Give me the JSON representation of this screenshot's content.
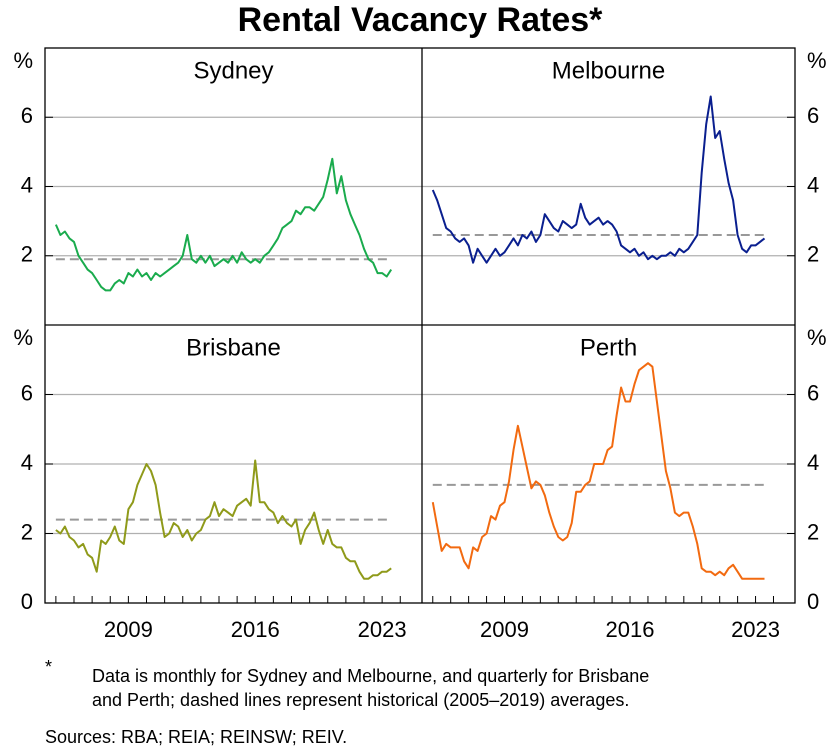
{
  "title": "Rental Vacancy Rates*",
  "chart_data": [
    {
      "type": "line",
      "title": "Sydney",
      "ylabel": "%",
      "color": "#1aab4d",
      "average": 1.9,
      "ylim": [
        0,
        8
      ],
      "yticks": [
        2,
        4,
        6
      ],
      "xlim": [
        2004.4,
        2025.2
      ],
      "grid": true,
      "x": [
        2005,
        2005.25,
        2005.5,
        2005.75,
        2006,
        2006.25,
        2006.5,
        2006.75,
        2007,
        2007.25,
        2007.5,
        2007.75,
        2008,
        2008.25,
        2008.5,
        2008.75,
        2009,
        2009.25,
        2009.5,
        2009.75,
        2010,
        2010.25,
        2010.5,
        2010.75,
        2011,
        2011.25,
        2011.5,
        2011.75,
        2012,
        2012.25,
        2012.5,
        2012.75,
        2013,
        2013.25,
        2013.5,
        2013.75,
        2014,
        2014.25,
        2014.5,
        2014.75,
        2015,
        2015.25,
        2015.5,
        2015.75,
        2016,
        2016.25,
        2016.5,
        2016.75,
        2017,
        2017.25,
        2017.5,
        2017.75,
        2018,
        2018.25,
        2018.5,
        2018.75,
        2019,
        2019.25,
        2019.5,
        2019.75,
        2020,
        2020.25,
        2020.5,
        2020.75,
        2021,
        2021.25,
        2021.5,
        2021.75,
        2022,
        2022.25,
        2022.5,
        2022.75,
        2023,
        2023.25,
        2023.5
      ],
      "values": [
        2.9,
        2.6,
        2.7,
        2.5,
        2.4,
        2.0,
        1.8,
        1.6,
        1.5,
        1.3,
        1.1,
        1.0,
        1.0,
        1.2,
        1.3,
        1.2,
        1.5,
        1.4,
        1.6,
        1.4,
        1.5,
        1.3,
        1.5,
        1.4,
        1.5,
        1.6,
        1.7,
        1.8,
        2.0,
        2.6,
        1.9,
        1.8,
        2.0,
        1.8,
        2.0,
        1.7,
        1.8,
        1.9,
        1.8,
        2.0,
        1.8,
        2.1,
        1.9,
        1.8,
        1.9,
        1.8,
        2.0,
        2.1,
        2.3,
        2.5,
        2.8,
        2.9,
        3.0,
        3.3,
        3.2,
        3.4,
        3.4,
        3.3,
        3.5,
        3.7,
        4.2,
        4.8,
        3.8,
        4.3,
        3.6,
        3.2,
        2.9,
        2.6,
        2.2,
        1.9,
        1.8,
        1.5,
        1.5,
        1.4,
        1.6
      ]
    },
    {
      "type": "line",
      "title": "Melbourne",
      "ylabel": "%",
      "color": "#0a1f8f",
      "average": 2.6,
      "ylim": [
        0,
        8
      ],
      "yticks": [
        2,
        4,
        6
      ],
      "xlim": [
        2004.4,
        2025.2
      ],
      "grid": true,
      "x": [
        2005,
        2005.25,
        2005.5,
        2005.75,
        2006,
        2006.25,
        2006.5,
        2006.75,
        2007,
        2007.25,
        2007.5,
        2007.75,
        2008,
        2008.25,
        2008.5,
        2008.75,
        2009,
        2009.25,
        2009.5,
        2009.75,
        2010,
        2010.25,
        2010.5,
        2010.75,
        2011,
        2011.25,
        2011.5,
        2011.75,
        2012,
        2012.25,
        2012.5,
        2012.75,
        2013,
        2013.25,
        2013.5,
        2013.75,
        2014,
        2014.25,
        2014.5,
        2014.75,
        2015,
        2015.25,
        2015.5,
        2015.75,
        2016,
        2016.25,
        2016.5,
        2016.75,
        2017,
        2017.25,
        2017.5,
        2017.75,
        2018,
        2018.25,
        2018.5,
        2018.75,
        2019,
        2019.25,
        2019.5,
        2019.75,
        2020,
        2020.25,
        2020.5,
        2020.75,
        2021,
        2021.25,
        2021.5,
        2021.75,
        2022,
        2022.25,
        2022.5,
        2022.75,
        2023,
        2023.25,
        2023.5
      ],
      "values": [
        3.9,
        3.6,
        3.2,
        2.8,
        2.7,
        2.5,
        2.4,
        2.5,
        2.3,
        1.8,
        2.2,
        2.0,
        1.8,
        2.0,
        2.2,
        2.0,
        2.1,
        2.3,
        2.5,
        2.3,
        2.6,
        2.5,
        2.7,
        2.4,
        2.6,
        3.2,
        3.0,
        2.8,
        2.7,
        3.0,
        2.9,
        2.8,
        2.9,
        3.5,
        3.1,
        2.9,
        3.0,
        3.1,
        2.9,
        3.0,
        2.9,
        2.7,
        2.3,
        2.2,
        2.1,
        2.2,
        2.0,
        2.1,
        1.9,
        2.0,
        1.9,
        2.0,
        2.0,
        2.1,
        2.0,
        2.2,
        2.1,
        2.2,
        2.4,
        2.6,
        4.4,
        5.8,
        6.6,
        5.4,
        5.6,
        4.8,
        4.1,
        3.6,
        2.6,
        2.2,
        2.1,
        2.3,
        2.3,
        2.4,
        2.5
      ]
    },
    {
      "type": "line",
      "title": "Brisbane",
      "ylabel": "%",
      "color": "#8f9a1a",
      "average": 2.4,
      "ylim": [
        0,
        8
      ],
      "yticks": [
        0,
        2,
        4,
        6
      ],
      "xlim": [
        2004.4,
        2025.2
      ],
      "xticks": [
        2009,
        2016,
        2023
      ],
      "xminorticks": [
        2005,
        2006,
        2007,
        2008,
        2009,
        2010,
        2011,
        2012,
        2013,
        2014,
        2015,
        2016,
        2017,
        2018,
        2019,
        2020,
        2021,
        2022,
        2023,
        2024
      ],
      "grid": true,
      "x": [
        2005,
        2005.25,
        2005.5,
        2005.75,
        2006,
        2006.25,
        2006.5,
        2006.75,
        2007,
        2007.25,
        2007.5,
        2007.75,
        2008,
        2008.25,
        2008.5,
        2008.75,
        2009,
        2009.25,
        2009.5,
        2009.75,
        2010,
        2010.25,
        2010.5,
        2010.75,
        2011,
        2011.25,
        2011.5,
        2011.75,
        2012,
        2012.25,
        2012.5,
        2012.75,
        2013,
        2013.25,
        2013.5,
        2013.75,
        2014,
        2014.25,
        2014.5,
        2014.75,
        2015,
        2015.25,
        2015.5,
        2015.75,
        2016,
        2016.25,
        2016.5,
        2016.75,
        2017,
        2017.25,
        2017.5,
        2017.75,
        2018,
        2018.25,
        2018.5,
        2018.75,
        2019,
        2019.25,
        2019.5,
        2019.75,
        2020,
        2020.25,
        2020.5,
        2020.75,
        2021,
        2021.25,
        2021.5,
        2021.75,
        2022,
        2022.25,
        2022.5,
        2022.75,
        2023,
        2023.25,
        2023.5
      ],
      "values": [
        2.1,
        2.0,
        2.2,
        1.9,
        1.8,
        1.6,
        1.7,
        1.4,
        1.3,
        0.9,
        1.8,
        1.7,
        1.9,
        2.2,
        1.8,
        1.7,
        2.7,
        2.9,
        3.4,
        3.7,
        4.0,
        3.8,
        3.4,
        2.6,
        1.9,
        2.0,
        2.3,
        2.2,
        1.9,
        2.1,
        1.8,
        2.0,
        2.1,
        2.4,
        2.5,
        2.9,
        2.5,
        2.7,
        2.6,
        2.5,
        2.8,
        2.9,
        3.0,
        2.8,
        4.1,
        2.9,
        2.9,
        2.7,
        2.6,
        2.3,
        2.5,
        2.3,
        2.2,
        2.4,
        1.7,
        2.1,
        2.3,
        2.6,
        2.1,
        1.7,
        2.1,
        1.7,
        1.6,
        1.6,
        1.3,
        1.2,
        1.2,
        0.9,
        0.7,
        0.7,
        0.8,
        0.8,
        0.9,
        0.9,
        1.0
      ]
    },
    {
      "type": "line",
      "title": "Perth",
      "ylabel": "%",
      "color": "#f26a10",
      "average": 3.4,
      "ylim": [
        0,
        8
      ],
      "yticks": [
        0,
        2,
        4,
        6
      ],
      "xlim": [
        2004.4,
        2025.2
      ],
      "xticks": [
        2009,
        2016,
        2023
      ],
      "xminorticks": [
        2005,
        2006,
        2007,
        2008,
        2009,
        2010,
        2011,
        2012,
        2013,
        2014,
        2015,
        2016,
        2017,
        2018,
        2019,
        2020,
        2021,
        2022,
        2023,
        2024
      ],
      "grid": true,
      "x": [
        2005,
        2005.25,
        2005.5,
        2005.75,
        2006,
        2006.25,
        2006.5,
        2006.75,
        2007,
        2007.25,
        2007.5,
        2007.75,
        2008,
        2008.25,
        2008.5,
        2008.75,
        2009,
        2009.25,
        2009.5,
        2009.75,
        2010,
        2010.25,
        2010.5,
        2010.75,
        2011,
        2011.25,
        2011.5,
        2011.75,
        2012,
        2012.25,
        2012.5,
        2012.75,
        2013,
        2013.25,
        2013.5,
        2013.75,
        2014,
        2014.25,
        2014.5,
        2014.75,
        2015,
        2015.25,
        2015.5,
        2015.75,
        2016,
        2016.25,
        2016.5,
        2016.75,
        2017,
        2017.25,
        2017.5,
        2017.75,
        2018,
        2018.25,
        2018.5,
        2018.75,
        2019,
        2019.25,
        2019.5,
        2019.75,
        2020,
        2020.25,
        2020.5,
        2020.75,
        2021,
        2021.25,
        2021.5,
        2021.75,
        2022,
        2022.25,
        2022.5,
        2022.75,
        2023,
        2023.25,
        2023.5
      ],
      "values": [
        2.9,
        2.2,
        1.5,
        1.7,
        1.6,
        1.6,
        1.6,
        1.2,
        1.0,
        1.6,
        1.5,
        1.9,
        2.0,
        2.5,
        2.4,
        2.8,
        2.9,
        3.5,
        4.4,
        5.1,
        4.5,
        3.9,
        3.3,
        3.5,
        3.4,
        3.1,
        2.6,
        2.2,
        1.9,
        1.8,
        1.9,
        2.3,
        3.2,
        3.2,
        3.4,
        3.5,
        4.0,
        4.0,
        4.0,
        4.4,
        4.5,
        5.4,
        6.2,
        5.8,
        5.8,
        6.3,
        6.7,
        6.8,
        6.9,
        6.8,
        5.8,
        4.8,
        3.8,
        3.3,
        2.6,
        2.5,
        2.6,
        2.6,
        2.2,
        1.7,
        1.0,
        0.9,
        0.9,
        0.8,
        0.9,
        0.8,
        1.0,
        1.1,
        0.9,
        0.7,
        0.7,
        0.7,
        0.7,
        0.7,
        0.7
      ]
    }
  ],
  "notes": {
    "marker": "*",
    "text": [
      "Data is monthly for Sydney and Melbourne, and quarterly for Brisbane",
      "and Perth; dashed lines represent historical (2005–2019) averages."
    ]
  },
  "sources": "Sources: RBA; REIA; REINSW; REIV."
}
